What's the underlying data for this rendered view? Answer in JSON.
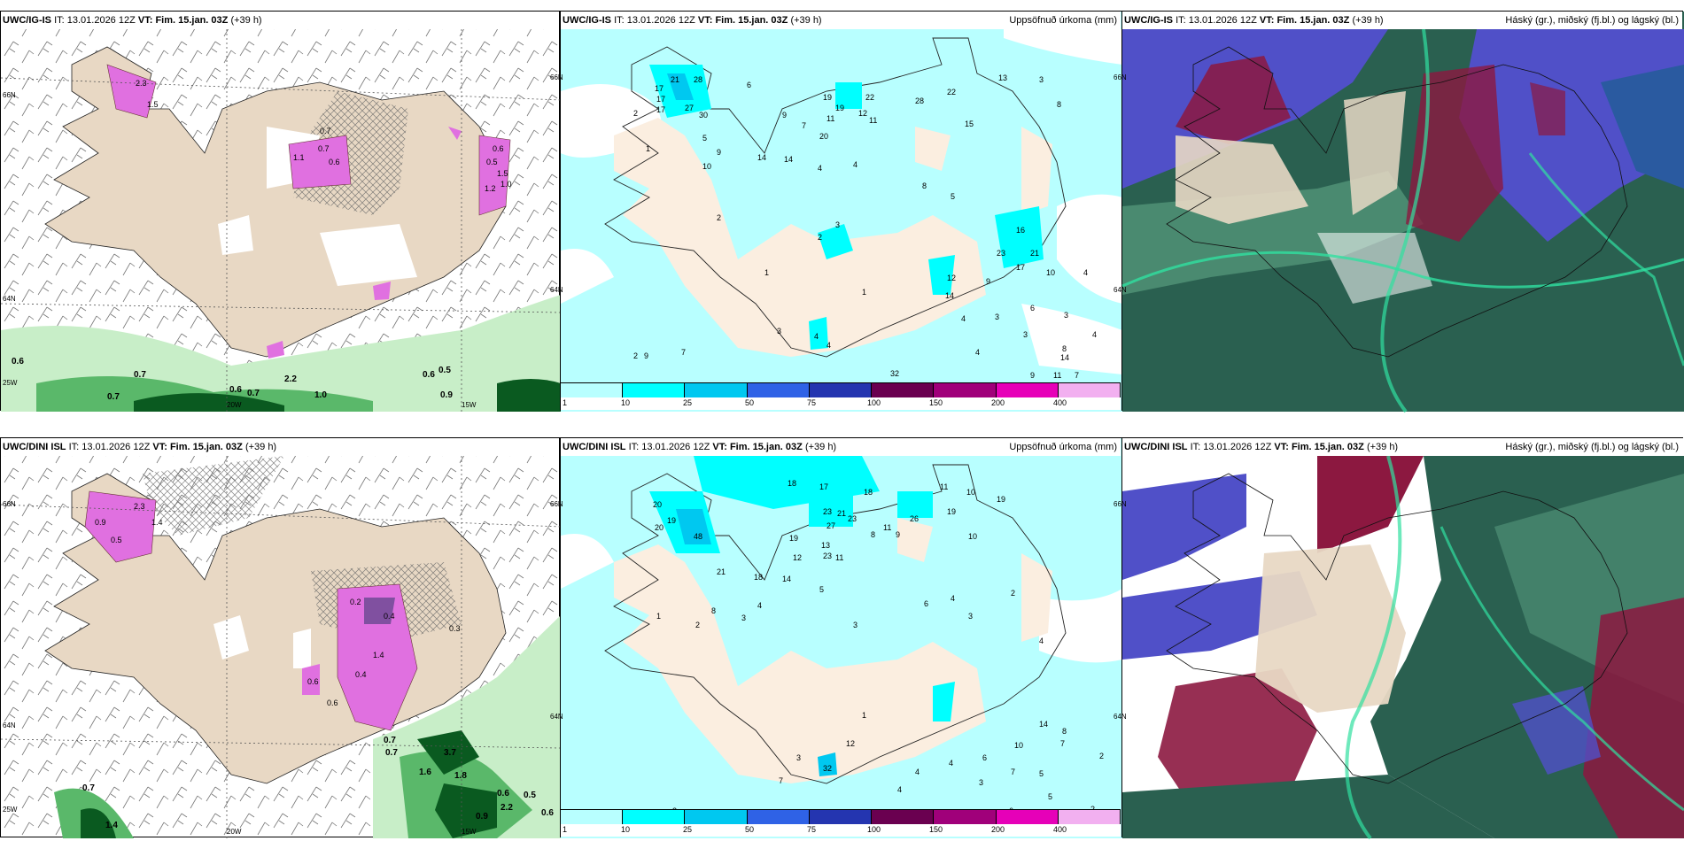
{
  "panels": [
    {
      "id": "p1",
      "model": "UWC/IG-IS",
      "it_prefix": "IT:",
      "it": "13.01.2026 12Z",
      "vt_prefix": "VT:",
      "vt": "Fim. 15.jan. 03Z",
      "lead": "(+39 h)",
      "right": "",
      "labels": [
        "0.6",
        "0.7",
        "0.7",
        "0.6",
        "0.7",
        "2.2",
        "1.0",
        "0.6",
        "0.5",
        "0.9",
        "2.3",
        "1.5",
        "0.6",
        "1.1",
        "0.7",
        "0.6",
        "0.5",
        "1.5",
        "1.2",
        "1.0",
        "0.7"
      ],
      "axis": [
        "66N",
        "64N",
        "25W",
        "20W",
        "15W",
        "66N",
        "64N"
      ]
    },
    {
      "id": "p2",
      "model": "UWC/IG-IS",
      "it_prefix": "IT:",
      "it": "13.01.2026 12Z",
      "vt_prefix": "VT:",
      "vt": "Fim. 15.jan. 03Z",
      "lead": "(+39 h)",
      "right": "Uppsöfnuð úrkoma (mm)",
      "labels": [
        "17",
        "21",
        "17",
        "17",
        "2",
        "1",
        "6",
        "28",
        "27",
        "30",
        "9",
        "7",
        "11",
        "19",
        "19",
        "20",
        "22",
        "11",
        "12",
        "28",
        "22",
        "13",
        "15",
        "3",
        "8",
        "5",
        "9",
        "10",
        "14",
        "14",
        "4",
        "4",
        "8",
        "5",
        "2",
        "3",
        "2",
        "1",
        "1",
        "16",
        "23",
        "21",
        "17",
        "10",
        "4",
        "14",
        "12",
        "9",
        "4",
        "3",
        "2",
        "9",
        "7",
        "4",
        "4",
        "3",
        "32",
        "5",
        "4",
        "9",
        "11",
        "14",
        "7",
        "4",
        "3",
        "6",
        "3",
        "8",
        "4"
      ],
      "axis": [
        "66N",
        "64N"
      ],
      "colorbar_ticks": [
        "1",
        "10",
        "25",
        "50",
        "75",
        "100",
        "150",
        "200",
        "400"
      ],
      "colorbar_colors": [
        "#b8ffff",
        "#00ffff",
        "#00c8f0",
        "#2f62e6",
        "#2435b0",
        "#6a0050",
        "#a0007a",
        "#e600b8",
        "#f2b0f0"
      ]
    },
    {
      "id": "p3",
      "model": "UWC/IG-IS",
      "it_prefix": "IT:",
      "it": "13.01.2026 12Z",
      "vt_prefix": "VT:",
      "vt": "Fim. 15.jan. 03Z",
      "lead": "(+39 h)",
      "right": "Háský (gr.), miðský (fj.bl.) og lágský (bl.)"
    },
    {
      "id": "p4",
      "model": "UWC/DINI ISL",
      "it_prefix": "IT:",
      "it": "13.01.2026 12Z",
      "vt_prefix": "VT:",
      "vt": "Fim. 15.jan. 03Z",
      "lead": "(+39 h)",
      "right": "",
      "labels": [
        "0.9",
        "2.3",
        "0.5",
        "1.4",
        "0.2",
        "0.4",
        "0.6",
        "1.4",
        "0.4",
        "0.6",
        "0.3",
        "0.7",
        "3.7",
        "1.8",
        "1.6",
        "2.2",
        "0.6",
        "0.5",
        "0.6",
        "0.9",
        "0.7",
        "1.4",
        "0.7"
      ],
      "axis": [
        "66N",
        "64N",
        "25W",
        "20W",
        "15W",
        "66N",
        "64N"
      ]
    },
    {
      "id": "p5",
      "model": "UWC/DINI ISL",
      "it_prefix": "IT:",
      "it": "13.01.2026 12Z",
      "vt_prefix": "VT:",
      "vt": "Fim. 15.jan. 03Z",
      "lead": "(+39 h)",
      "right": "Uppsöfnuð úrkoma (mm)",
      "labels": [
        "18",
        "17",
        "18",
        "11",
        "10",
        "19",
        "20",
        "19",
        "20",
        "48",
        "19",
        "23",
        "27",
        "21",
        "23",
        "26",
        "19",
        "8",
        "11",
        "9",
        "13",
        "23",
        "11",
        "21",
        "18",
        "14",
        "12",
        "5",
        "10",
        "8",
        "3",
        "4",
        "2",
        "3",
        "1",
        "4",
        "6",
        "3",
        "2",
        "4",
        "12",
        "32",
        "1",
        "2",
        "5",
        "5",
        "4",
        "10",
        "7",
        "5",
        "14",
        "8",
        "7",
        "2",
        "6",
        "4",
        "3",
        "4",
        "2",
        "8",
        "6",
        "5",
        "7",
        "3"
      ],
      "axis": [
        "66N",
        "64N"
      ],
      "colorbar_ticks": [
        "1",
        "10",
        "25",
        "50",
        "75",
        "100",
        "150",
        "200",
        "400"
      ],
      "colorbar_colors": [
        "#b8ffff",
        "#00ffff",
        "#00c8f0",
        "#2f62e6",
        "#2435b0",
        "#6a0050",
        "#a0007a",
        "#e600b8",
        "#f2b0f0"
      ]
    },
    {
      "id": "p6",
      "model": "UWC/DINI ISL",
      "it_prefix": "IT:",
      "it": "13.01.2026 12Z",
      "vt_prefix": "VT:",
      "vt": "Fim. 15.jan. 03Z",
      "lead": "(+39 h)",
      "right": "Háský (gr.), miðský (fj.bl.) og lágský (bl.)"
    }
  ],
  "colors": {
    "land": "#e8d8c4",
    "land_light": "#fbeee0",
    "ocean": "#ffffff",
    "precip_low": "#b8ffff",
    "precip_mid": "#00ffff",
    "snow_pink": "#e070e0",
    "green_light": "#c8eec8",
    "green_mid": "#5ab86a",
    "green_dark": "#0a5a20",
    "cloud_high": "#2a6050",
    "cloud_mid": "#5050c8",
    "cloud_low": "#8c1840"
  }
}
